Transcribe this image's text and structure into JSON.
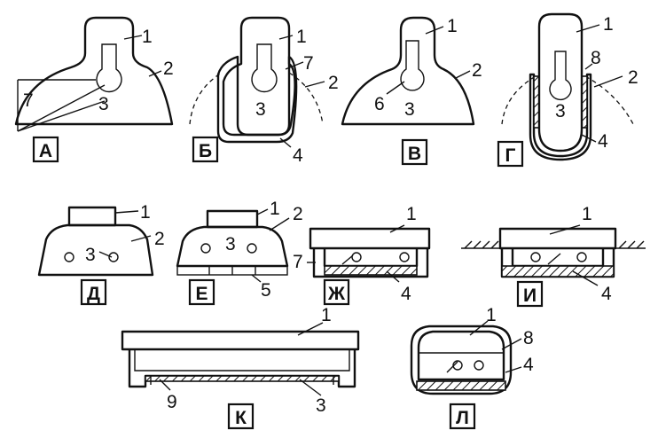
{
  "figure": {
    "panels": [
      {
        "id": "a",
        "tag": "А",
        "labels": [
          "1",
          "2",
          "3",
          "7"
        ]
      },
      {
        "id": "b",
        "tag": "Б",
        "labels": [
          "1",
          "7",
          "2",
          "3",
          "4"
        ]
      },
      {
        "id": "v",
        "tag": "В",
        "labels": [
          "1",
          "2",
          "6",
          "3"
        ]
      },
      {
        "id": "g",
        "tag": "Г",
        "labels": [
          "1",
          "8",
          "2",
          "3",
          "4"
        ]
      },
      {
        "id": "d",
        "tag": "Д",
        "labels": [
          "1",
          "2",
          "3"
        ]
      },
      {
        "id": "e",
        "tag": "Е",
        "labels": [
          "1",
          "2",
          "3",
          "5"
        ]
      },
      {
        "id": "zh",
        "tag": "Ж",
        "labels": [
          "1",
          "7",
          "4"
        ]
      },
      {
        "id": "i",
        "tag": "И",
        "labels": [
          "1",
          "4"
        ]
      },
      {
        "id": "k",
        "tag": "К",
        "labels": [
          "1",
          "9",
          "3"
        ]
      },
      {
        "id": "l",
        "tag": "Л",
        "labels": [
          "1",
          "8",
          "4"
        ]
      }
    ]
  }
}
